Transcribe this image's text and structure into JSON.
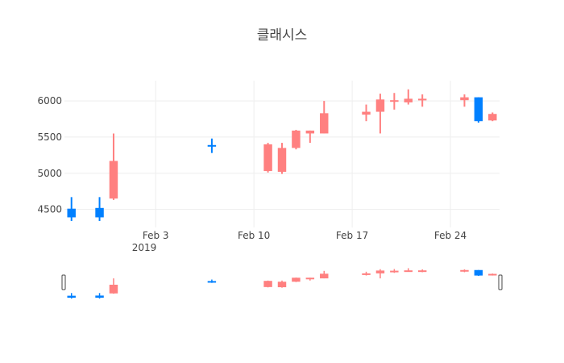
{
  "chart_data": {
    "type": "candlestick",
    "title": "클래시스",
    "xlabel": "",
    "ylabel": "",
    "x_ticks": [
      "Feb 3",
      "Feb 10",
      "Feb 17",
      "Feb 24"
    ],
    "x_tick_year": "2019",
    "y_ticks": [
      4500,
      5000,
      5500,
      6000
    ],
    "ylim": [
      4250,
      6280
    ],
    "grid": true,
    "rangeslider": true,
    "colors": {
      "increasing": "#FF8080",
      "decreasing": "#0080FF",
      "grid": "#eeeeee"
    },
    "candles": [
      {
        "date": "2019-01-28",
        "open": 4510,
        "high": 4670,
        "low": 4340,
        "close": 4390
      },
      {
        "date": "2019-01-30",
        "open": 4520,
        "high": 4670,
        "low": 4340,
        "close": 4390
      },
      {
        "date": "2019-01-31",
        "open": 4650,
        "high": 5550,
        "low": 4630,
        "close": 5170
      },
      {
        "date": "2019-02-07",
        "open": 5390,
        "high": 5480,
        "low": 5280,
        "close": 5380
      },
      {
        "date": "2019-02-11",
        "open": 5030,
        "high": 5420,
        "low": 5010,
        "close": 5400
      },
      {
        "date": "2019-02-12",
        "open": 5020,
        "high": 5420,
        "low": 4990,
        "close": 5350
      },
      {
        "date": "2019-02-13",
        "open": 5350,
        "high": 5600,
        "low": 5330,
        "close": 5590
      },
      {
        "date": "2019-02-14",
        "open": 5550,
        "high": 5590,
        "low": 5420,
        "close": 5590
      },
      {
        "date": "2019-02-15",
        "open": 5550,
        "high": 6000,
        "low": 5550,
        "close": 5830
      },
      {
        "date": "2019-02-18",
        "open": 5810,
        "high": 5950,
        "low": 5720,
        "close": 5850
      },
      {
        "date": "2019-02-19",
        "open": 5850,
        "high": 6100,
        "low": 5550,
        "close": 6020
      },
      {
        "date": "2019-02-20",
        "open": 5990,
        "high": 6110,
        "low": 5880,
        "close": 6010
      },
      {
        "date": "2019-02-21",
        "open": 5980,
        "high": 6160,
        "low": 5950,
        "close": 6030
      },
      {
        "date": "2019-02-22",
        "open": 6010,
        "high": 6090,
        "low": 5920,
        "close": 6030
      },
      {
        "date": "2019-02-25",
        "open": 6010,
        "high": 6090,
        "low": 5920,
        "close": 6050
      },
      {
        "date": "2019-02-26",
        "open": 6050,
        "high": 6050,
        "low": 5700,
        "close": 5720
      },
      {
        "date": "2019-02-27",
        "open": 5730,
        "high": 5840,
        "low": 5720,
        "close": 5820
      }
    ]
  }
}
